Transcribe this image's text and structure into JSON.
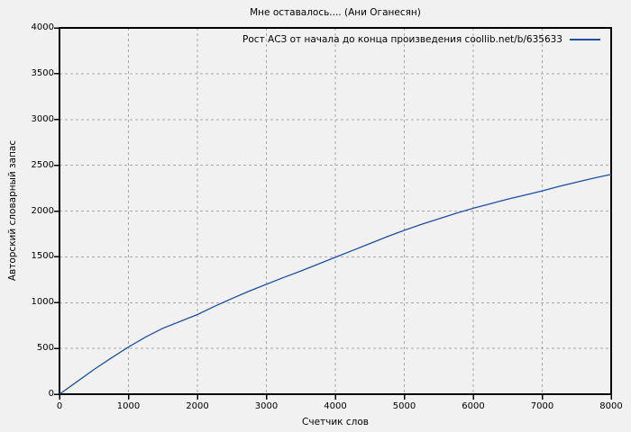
{
  "page": {
    "background": "#f1f1f1",
    "text_color": "#000000"
  },
  "chart_data": {
    "type": "line",
    "title": "Мне оставалось.... (Ани Оганесян)",
    "xlabel": "Счетчик слов",
    "ylabel": "Авторский словарный запас",
    "xlim": [
      0,
      8000
    ],
    "ylim": [
      0,
      4000
    ],
    "xticks": [
      0,
      1000,
      2000,
      3000,
      4000,
      5000,
      6000,
      7000,
      8000
    ],
    "yticks": [
      0,
      500,
      1000,
      1500,
      2000,
      2500,
      3000,
      3500,
      4000
    ],
    "grid": true,
    "grid_style": "dashed",
    "grid_color": "#a8a8a8",
    "border_color": "#000000",
    "legend_position": "top-right-inside",
    "series": [
      {
        "name": "Рост АСЗ от начала до конца произведения coollib.net/b/635633",
        "color": "#1d4fa3",
        "points": [
          [
            0,
            0
          ],
          [
            250,
            135
          ],
          [
            500,
            270
          ],
          [
            750,
            395
          ],
          [
            1000,
            515
          ],
          [
            1250,
            625
          ],
          [
            1500,
            720
          ],
          [
            1750,
            795
          ],
          [
            2000,
            870
          ],
          [
            2250,
            960
          ],
          [
            2500,
            1045
          ],
          [
            2750,
            1125
          ],
          [
            3000,
            1200
          ],
          [
            3250,
            1275
          ],
          [
            3500,
            1345
          ],
          [
            3750,
            1420
          ],
          [
            4000,
            1495
          ],
          [
            4250,
            1570
          ],
          [
            4500,
            1645
          ],
          [
            4750,
            1720
          ],
          [
            5000,
            1790
          ],
          [
            5250,
            1855
          ],
          [
            5500,
            1915
          ],
          [
            5750,
            1975
          ],
          [
            6000,
            2030
          ],
          [
            6250,
            2080
          ],
          [
            6500,
            2130
          ],
          [
            6750,
            2175
          ],
          [
            7000,
            2220
          ],
          [
            7250,
            2270
          ],
          [
            7500,
            2315
          ],
          [
            7750,
            2360
          ],
          [
            8000,
            2400
          ]
        ]
      }
    ]
  }
}
